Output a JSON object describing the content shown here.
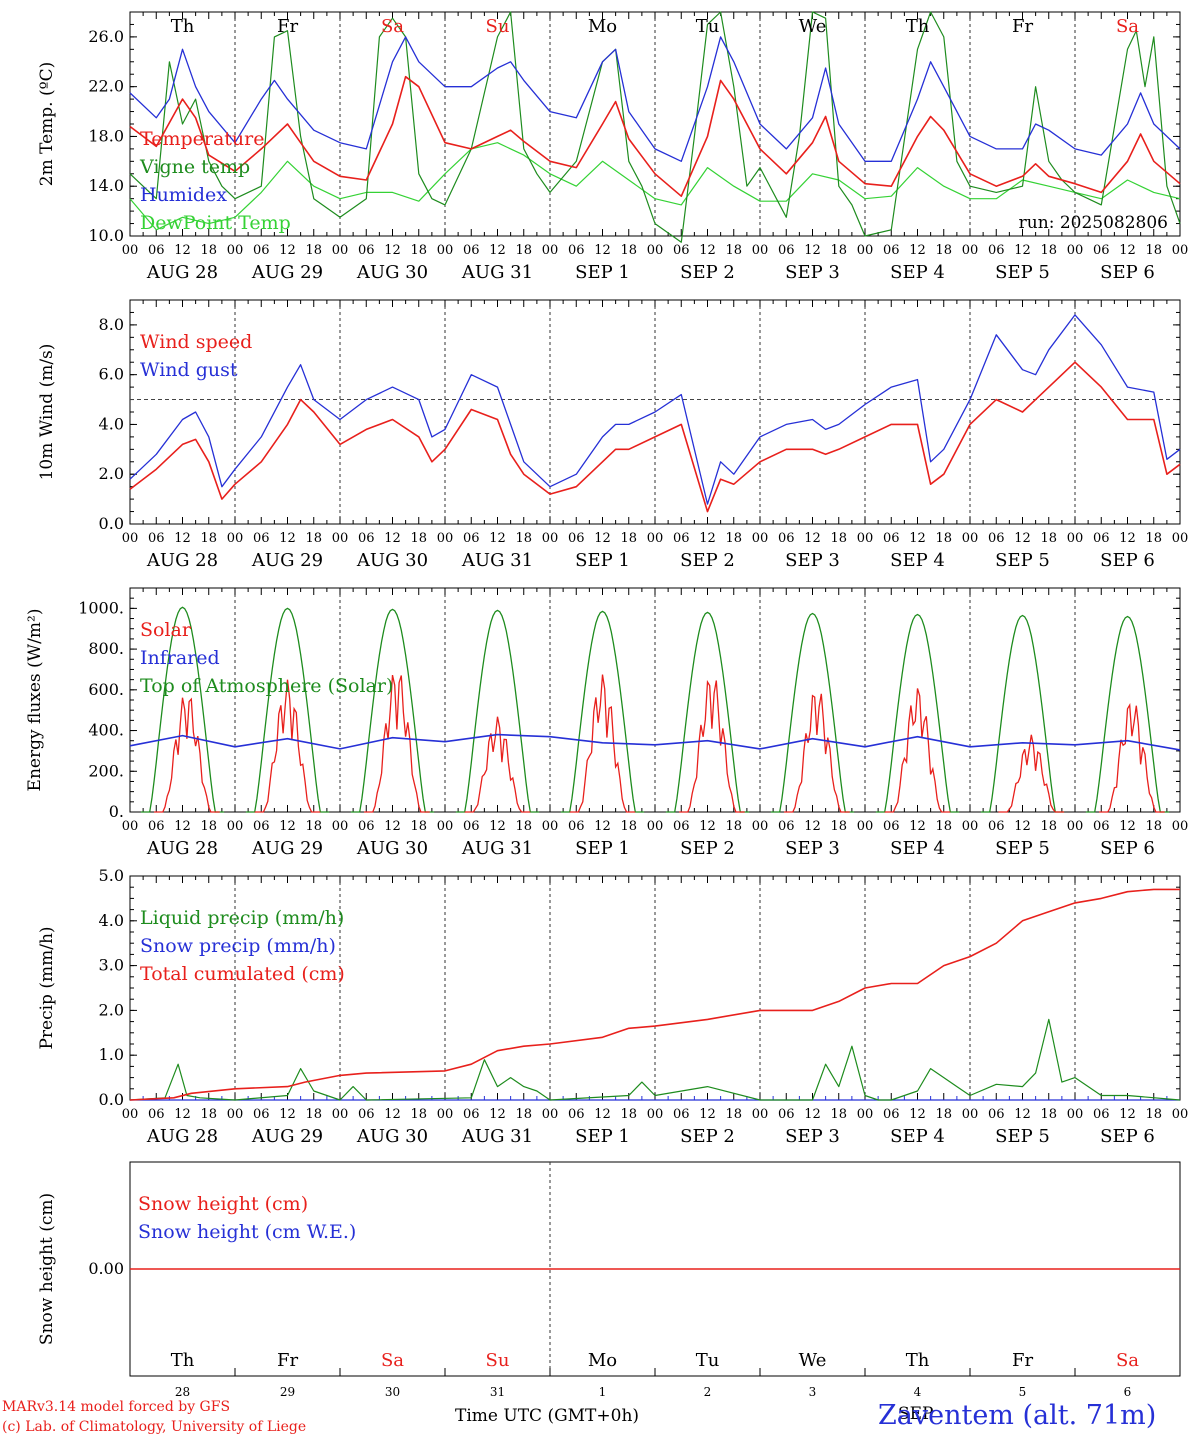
{
  "colors": {
    "red": "#e8201c",
    "green": "#1e8c1e",
    "blue": "#2630d6",
    "lightgreen": "#35d235",
    "grey": "#777777"
  },
  "days": [
    "Th",
    "Fr",
    "Sa",
    "Su",
    "Mo",
    "Tu",
    "We",
    "Th",
    "Fr",
    "Sa"
  ],
  "day_colors": [
    "black",
    "black",
    "red",
    "red",
    "black",
    "black",
    "black",
    "black",
    "black",
    "red"
  ],
  "date_labels": [
    "AUG 28",
    "AUG 29",
    "AUG 30",
    "AUG 31",
    "SEP  1",
    "SEP  2",
    "SEP  3",
    "SEP  4",
    "SEP  5",
    "SEP  6"
  ],
  "hour_ticks": [
    "00",
    "06",
    "12",
    "18"
  ],
  "final_hour": "00",
  "bottom_days": [
    "28",
    "29",
    "30",
    "31",
    "1",
    "2",
    "3",
    "4",
    "5",
    "6"
  ],
  "run_label": "run: 2025082806",
  "footer": {
    "model": "MARv3.14 model forced by GFS",
    "lab": "(c) Lab. of Climatology, University of Liege",
    "axis_title": "Time UTC (GMT+0h)",
    "month": "SEP",
    "station": "Zaventem (alt. 71m)"
  },
  "chart_data": [
    {
      "type": "line",
      "ylabel": "2m Temp. (ºC)",
      "ylim": [
        10,
        28
      ],
      "yticks": [
        "10.0",
        "14.0",
        "18.0",
        "22.0",
        "26.0"
      ],
      "x_unit": "hours since AUG 28 00 UTC",
      "series": [
        {
          "name": "Temperature",
          "color": "#e8201c",
          "x": [
            0,
            6,
            12,
            15,
            18,
            24,
            30,
            36,
            39,
            42,
            48,
            54,
            60,
            63,
            66,
            72,
            78,
            84,
            87,
            90,
            96,
            102,
            108,
            111,
            114,
            120,
            126,
            132,
            135,
            138,
            144,
            150,
            156,
            159,
            162,
            168,
            174,
            180,
            183,
            186,
            192,
            198,
            204,
            207,
            210,
            216,
            222,
            228,
            231,
            234,
            240
          ],
          "y": [
            18.8,
            17.2,
            21.0,
            19.5,
            16.5,
            15.2,
            17.0,
            19.0,
            17.5,
            16.0,
            14.8,
            14.5,
            19.0,
            22.8,
            22.0,
            17.5,
            17.0,
            18.0,
            18.5,
            17.6,
            16.0,
            15.5,
            19.0,
            20.8,
            17.8,
            15.0,
            13.2,
            18.0,
            22.5,
            21.0,
            17.0,
            15.0,
            17.5,
            19.6,
            16.0,
            14.2,
            14.0,
            18.0,
            19.6,
            18.5,
            15.0,
            14.0,
            14.8,
            15.8,
            14.8,
            14.2,
            13.5,
            16.0,
            18.2,
            16.0,
            14.2
          ]
        },
        {
          "name": "Vigne temp",
          "color": "#1e8c1e",
          "x": [
            0,
            6,
            9,
            12,
            15,
            18,
            21,
            24,
            30,
            33,
            36,
            39,
            42,
            48,
            54,
            57,
            60,
            63,
            66,
            69,
            72,
            78,
            84,
            87,
            90,
            93,
            96,
            102,
            108,
            111,
            114,
            117,
            120,
            126,
            129,
            132,
            135,
            138,
            141,
            144,
            150,
            153,
            156,
            159,
            162,
            165,
            168,
            174,
            180,
            183,
            186,
            189,
            192,
            198,
            204,
            207,
            210,
            213,
            216,
            222,
            228,
            230,
            232,
            234,
            237,
            240
          ],
          "y": [
            15.0,
            13.0,
            24.0,
            19.0,
            21.0,
            16.0,
            14.0,
            13.0,
            14.0,
            26.0,
            26.5,
            18.0,
            13.0,
            11.5,
            13.0,
            26.0,
            27.5,
            26.0,
            15.0,
            13.0,
            12.5,
            17.0,
            26.0,
            28.0,
            17.0,
            15.0,
            13.5,
            16.0,
            24.0,
            25.0,
            16.0,
            14.0,
            11.0,
            9.5,
            18.0,
            27.0,
            28.0,
            22.0,
            14.0,
            15.5,
            11.5,
            18.0,
            28.0,
            27.5,
            14.0,
            12.5,
            10.0,
            10.5,
            25.0,
            28.0,
            26.0,
            16.0,
            14.0,
            13.5,
            14.0,
            22.0,
            16.0,
            14.5,
            13.5,
            12.5,
            25.0,
            26.5,
            22.0,
            26.0,
            14.0,
            11.0
          ]
        },
        {
          "name": "Humidex",
          "color": "#2630d6",
          "x": [
            0,
            6,
            9,
            12,
            15,
            18,
            24,
            30,
            33,
            36,
            42,
            48,
            54,
            60,
            63,
            66,
            72,
            78,
            84,
            87,
            90,
            96,
            102,
            108,
            111,
            114,
            120,
            126,
            132,
            135,
            138,
            144,
            150,
            156,
            159,
            162,
            168,
            174,
            180,
            183,
            186,
            192,
            198,
            204,
            207,
            210,
            216,
            222,
            228,
            231,
            234,
            240
          ],
          "y": [
            21.5,
            19.5,
            21.0,
            25.0,
            22.0,
            20.0,
            17.5,
            21.0,
            22.5,
            21.0,
            18.5,
            17.5,
            17.0,
            24.0,
            26.0,
            24.0,
            22.0,
            22.0,
            23.5,
            24.0,
            22.5,
            20.0,
            19.5,
            24.0,
            25.0,
            20.0,
            17.0,
            16.0,
            22.0,
            26.0,
            24.0,
            19.0,
            17.0,
            19.5,
            23.5,
            19.0,
            16.0,
            16.0,
            21.0,
            24.0,
            22.0,
            18.0,
            17.0,
            17.0,
            19.0,
            18.5,
            17.0,
            16.5,
            19.0,
            21.5,
            19.0,
            17.0
          ]
        },
        {
          "name": "DewPoint Temp",
          "color": "#35d235",
          "x": [
            0,
            6,
            12,
            18,
            24,
            30,
            36,
            42,
            48,
            54,
            60,
            66,
            72,
            78,
            84,
            90,
            96,
            102,
            108,
            114,
            120,
            126,
            132,
            138,
            144,
            150,
            156,
            162,
            168,
            174,
            180,
            186,
            192,
            198,
            204,
            210,
            216,
            222,
            228,
            234,
            240
          ],
          "y": [
            13.0,
            10.5,
            11.5,
            11.0,
            11.5,
            13.5,
            16.0,
            14.0,
            13.0,
            13.5,
            13.5,
            12.8,
            15.0,
            17.0,
            17.5,
            16.5,
            15.0,
            14.0,
            16.0,
            14.5,
            13.0,
            12.5,
            15.5,
            14.0,
            12.8,
            12.8,
            15.0,
            14.5,
            13.0,
            13.2,
            15.5,
            14.0,
            13.0,
            13.0,
            14.5,
            14.0,
            13.5,
            13.0,
            14.5,
            13.5,
            13.0
          ]
        }
      ]
    },
    {
      "type": "line",
      "ylabel": "10m Wind (m/s)",
      "ylim": [
        0,
        9
      ],
      "yticks": [
        "0.0",
        "2.0",
        "4.0",
        "6.0",
        "8.0"
      ],
      "reference_line": 5,
      "x_unit": "hours since AUG 28 00 UTC",
      "series": [
        {
          "name": "Wind speed",
          "color": "#e8201c",
          "x": [
            0,
            6,
            12,
            15,
            18,
            21,
            24,
            30,
            36,
            39,
            42,
            48,
            54,
            60,
            66,
            69,
            72,
            78,
            84,
            87,
            90,
            96,
            102,
            108,
            111,
            114,
            120,
            126,
            132,
            135,
            138,
            144,
            150,
            156,
            159,
            162,
            168,
            174,
            180,
            183,
            186,
            192,
            198,
            204,
            207,
            210,
            216,
            222,
            228,
            234,
            237,
            240
          ],
          "y": [
            1.4,
            2.2,
            3.2,
            3.4,
            2.5,
            1.0,
            1.6,
            2.5,
            4.0,
            5.0,
            4.5,
            3.2,
            3.8,
            4.2,
            3.5,
            2.5,
            3.0,
            4.6,
            4.2,
            2.8,
            2.0,
            1.2,
            1.5,
            2.5,
            3.0,
            3.0,
            3.5,
            4.0,
            0.5,
            1.8,
            1.6,
            2.5,
            3.0,
            3.0,
            2.8,
            3.0,
            3.5,
            4.0,
            4.0,
            1.6,
            2.0,
            4.0,
            5.0,
            4.5,
            5.0,
            5.5,
            6.5,
            5.5,
            4.2,
            4.2,
            2.0,
            2.4
          ]
        },
        {
          "name": "Wind gust",
          "color": "#2630d6",
          "x": [
            0,
            6,
            12,
            15,
            18,
            21,
            24,
            30,
            36,
            39,
            42,
            48,
            54,
            60,
            66,
            69,
            72,
            78,
            84,
            87,
            90,
            96,
            102,
            108,
            111,
            114,
            120,
            126,
            132,
            135,
            138,
            144,
            150,
            156,
            159,
            162,
            168,
            174,
            180,
            183,
            186,
            192,
            198,
            204,
            207,
            210,
            216,
            222,
            228,
            234,
            237,
            240
          ],
          "y": [
            1.8,
            2.8,
            4.2,
            4.5,
            3.5,
            1.5,
            2.2,
            3.5,
            5.5,
            6.4,
            5.0,
            4.2,
            5.0,
            5.5,
            5.0,
            3.5,
            3.8,
            6.0,
            5.5,
            4.0,
            2.5,
            1.5,
            2.0,
            3.5,
            4.0,
            4.0,
            4.5,
            5.2,
            0.8,
            2.5,
            2.0,
            3.5,
            4.0,
            4.2,
            3.8,
            4.0,
            4.8,
            5.5,
            5.8,
            2.5,
            3.0,
            5.0,
            7.6,
            6.2,
            6.0,
            7.0,
            8.4,
            7.2,
            5.5,
            5.3,
            2.6,
            3.0
          ]
        }
      ]
    },
    {
      "type": "line",
      "ylabel": "Energy fluxes (W/m²)",
      "ylim": [
        0,
        1100
      ],
      "yticks": [
        "0.",
        "200.",
        "400.",
        "600.",
        "800.",
        "1000."
      ],
      "x_unit": "hours since AUG 28 00 UTC",
      "series": [
        {
          "name": "Solar",
          "color": "#e8201c",
          "peak_hours": [
            13,
            12,
            13,
            12,
            12,
            13,
            13,
            12,
            14,
            13
          ],
          "peaks": [
            600,
            650,
            720,
            470,
            680,
            690,
            620,
            620,
            380,
            560
          ]
        },
        {
          "name": "Infrared",
          "color": "#2630d6",
          "x": [
            0,
            12,
            24,
            36,
            48,
            60,
            72,
            84,
            96,
            108,
            120,
            132,
            144,
            156,
            168,
            180,
            192,
            204,
            216,
            228,
            240
          ],
          "y": [
            325,
            375,
            320,
            360,
            310,
            365,
            345,
            380,
            370,
            340,
            330,
            350,
            310,
            360,
            320,
            370,
            320,
            340,
            330,
            350,
            305
          ]
        },
        {
          "name": "Top of Atmosphere (Solar)",
          "color": "#1e8c1e",
          "peak_values": [
            1005,
            1000,
            995,
            990,
            985,
            980,
            975,
            970,
            965,
            960
          ]
        }
      ]
    },
    {
      "type": "line",
      "ylabel": "Precip (mm/h)",
      "ylim": [
        0,
        5
      ],
      "yticks": [
        "0.0",
        "1.0",
        "2.0",
        "3.0",
        "4.0",
        "5.0"
      ],
      "x_unit": "hours since AUG 28 00 UTC",
      "series": [
        {
          "name": "Liquid precip (mm/h)",
          "color": "#1e8c1e",
          "x": [
            0,
            8,
            11,
            13,
            16,
            24,
            36,
            39,
            42,
            48,
            51,
            54,
            78,
            81,
            84,
            87,
            90,
            93,
            96,
            114,
            117,
            120,
            132,
            144,
            156,
            159,
            162,
            165,
            168,
            171,
            174,
            180,
            183,
            186,
            189,
            192,
            198,
            204,
            207,
            210,
            213,
            216,
            222,
            228,
            240
          ],
          "y": [
            0,
            0.05,
            0.8,
            0.1,
            0.05,
            0,
            0.1,
            0.7,
            0.2,
            0,
            0.3,
            0,
            0.05,
            0.9,
            0.3,
            0.5,
            0.3,
            0.2,
            0,
            0.1,
            0.4,
            0.1,
            0.3,
            0,
            0,
            0.8,
            0.3,
            1.2,
            0.1,
            0,
            0,
            0.2,
            0.7,
            0.5,
            0.3,
            0.1,
            0.35,
            0.3,
            0.6,
            1.8,
            0.4,
            0.5,
            0.1,
            0.1,
            0
          ]
        },
        {
          "name": "Snow precip (mm/h)",
          "color": "#2630d6",
          "x": [
            0,
            240
          ],
          "y": [
            0,
            0
          ]
        },
        {
          "name": "Total cumulated (cm)",
          "color": "#e8201c",
          "x": [
            0,
            10,
            14,
            24,
            36,
            40,
            48,
            54,
            72,
            78,
            84,
            90,
            96,
            108,
            114,
            120,
            132,
            144,
            156,
            162,
            168,
            174,
            180,
            186,
            192,
            198,
            204,
            210,
            216,
            222,
            228,
            234,
            240
          ],
          "y": [
            0,
            0.05,
            0.15,
            0.25,
            0.3,
            0.4,
            0.55,
            0.6,
            0.65,
            0.8,
            1.1,
            1.2,
            1.25,
            1.4,
            1.6,
            1.65,
            1.8,
            2.0,
            2.0,
            2.2,
            2.5,
            2.6,
            2.6,
            3.0,
            3.2,
            3.5,
            4.0,
            4.2,
            4.4,
            4.5,
            4.65,
            4.7,
            4.7
          ]
        }
      ]
    },
    {
      "type": "line",
      "ylabel": "Snow height (cm)",
      "ylim": [
        -1,
        1
      ],
      "yticks": [
        "0.00"
      ],
      "x_unit": "hours since AUG 28 00 UTC",
      "series": [
        {
          "name": "Snow height (cm)",
          "color": "#e8201c",
          "x": [
            0,
            240
          ],
          "y": [
            0,
            0
          ]
        },
        {
          "name": "Snow height (cm W.E.)",
          "color": "#2630d6",
          "x": [
            0,
            240
          ],
          "y": [
            0,
            0
          ]
        }
      ]
    }
  ]
}
